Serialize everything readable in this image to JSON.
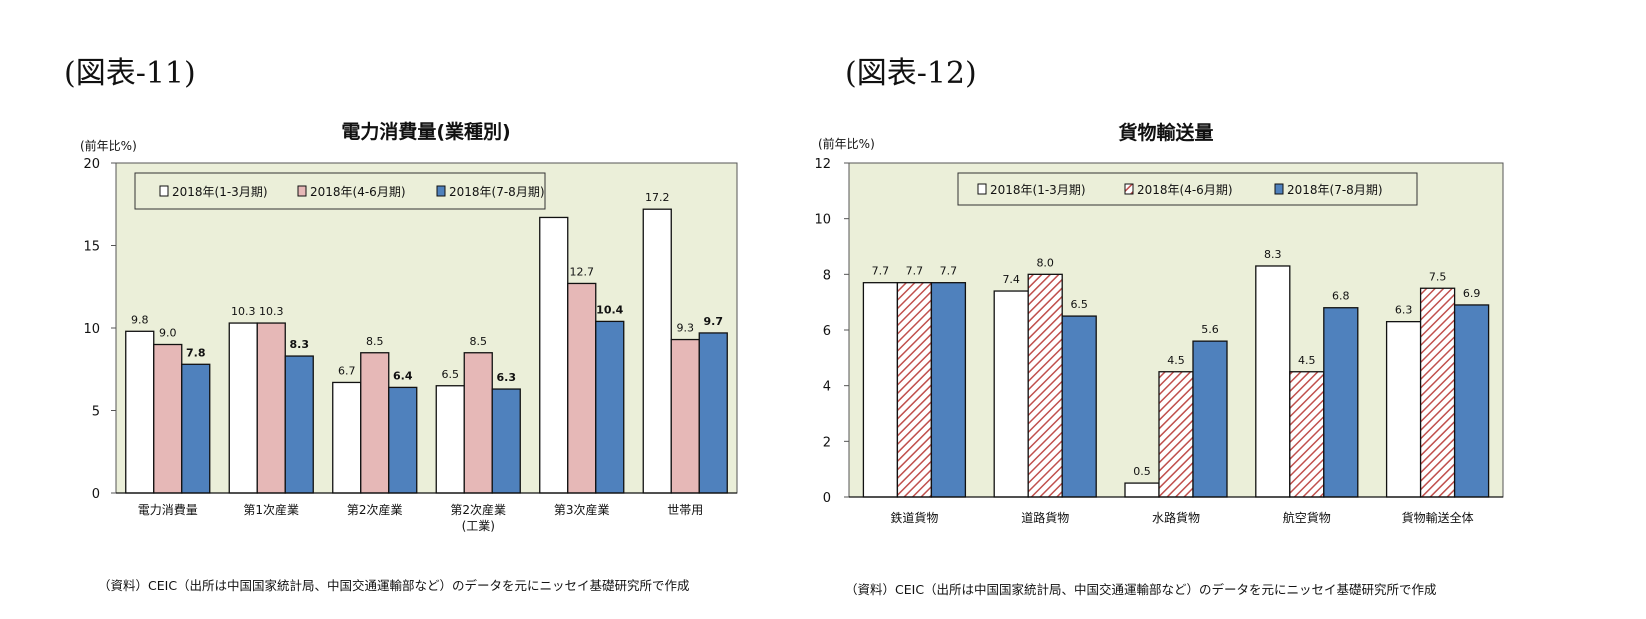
{
  "figures": {
    "left": {
      "label": "(図表-11)",
      "source": "（資料）CEIC（出所は中国国家統計局、中国交通運輸部など）のデータを元にニッセイ基礎研究所で作成"
    },
    "right": {
      "label": "(図表-12)",
      "source": "（資料）CEIC（出所は中国国家統計局、中国交通運輸部など）のデータを元にニッセイ基礎研究所で作成"
    }
  },
  "colors": {
    "plot_bg": "#ebefd9",
    "white_bar": "#ffffff",
    "pink_bar": "#e6b8b7",
    "blue_bar": "#4f81bd",
    "hatch_red": "#c0504d"
  },
  "chart_data": [
    {
      "type": "bar",
      "title": "電力消費量(業種別)",
      "unit_label": "(前年比%)",
      "categories": [
        "電力消費量",
        "第1次産業",
        "第2次産業",
        "第2次産業\n(工業)",
        "第3次産業",
        "世帯用"
      ],
      "series": [
        {
          "name": "2018年(1-3月期)",
          "values": [
            9.8,
            10.3,
            6.7,
            6.5,
            16.7,
            17.2
          ],
          "labels": [
            "9.8",
            "10.3",
            "6.7",
            "6.5",
            "",
            "17.2"
          ]
        },
        {
          "name": "2018年(4-6月期)",
          "values": [
            9.0,
            10.3,
            8.5,
            8.5,
            12.7,
            9.3
          ],
          "labels": [
            "9.0",
            "10.3",
            "8.5",
            "8.5",
            "12.7",
            "9.3"
          ]
        },
        {
          "name": "2018年(7-8月期)",
          "values": [
            7.8,
            8.3,
            6.4,
            6.3,
            10.4,
            9.7
          ],
          "labels": [
            "7.8",
            "8.3",
            "6.4",
            "6.3",
            "10.4",
            "9.7"
          ]
        }
      ],
      "ylim": [
        0,
        20
      ],
      "yticks": [
        0,
        5,
        10,
        15,
        20
      ],
      "legend": "top-left",
      "grid": false
    },
    {
      "type": "bar",
      "title": "貨物輸送量",
      "unit_label": "(前年比%)",
      "categories": [
        "鉄道貨物",
        "道路貨物",
        "水路貨物",
        "航空貨物",
        "貨物輸送全体"
      ],
      "series": [
        {
          "name": "2018年(1-3月期)",
          "values": [
            7.7,
            7.4,
            0.5,
            8.3,
            6.3
          ],
          "labels": [
            "7.7",
            "7.4",
            "0.5",
            "8.3",
            "6.3"
          ]
        },
        {
          "name": "2018年(4-6月期)",
          "values": [
            7.7,
            8.0,
            4.5,
            4.5,
            7.5
          ],
          "labels": [
            "7.7",
            "8.0",
            "4.5",
            "4.5",
            "7.5"
          ]
        },
        {
          "name": "2018年(7-8月期)",
          "values": [
            7.7,
            6.5,
            5.6,
            6.8,
            6.9
          ],
          "labels": [
            "7.7",
            "6.5",
            "5.6",
            "6.8",
            "6.9"
          ]
        }
      ],
      "ylim": [
        0,
        12
      ],
      "yticks": [
        0,
        2,
        4,
        6,
        8,
        10,
        12
      ],
      "legend": "top-center",
      "grid": false
    }
  ]
}
